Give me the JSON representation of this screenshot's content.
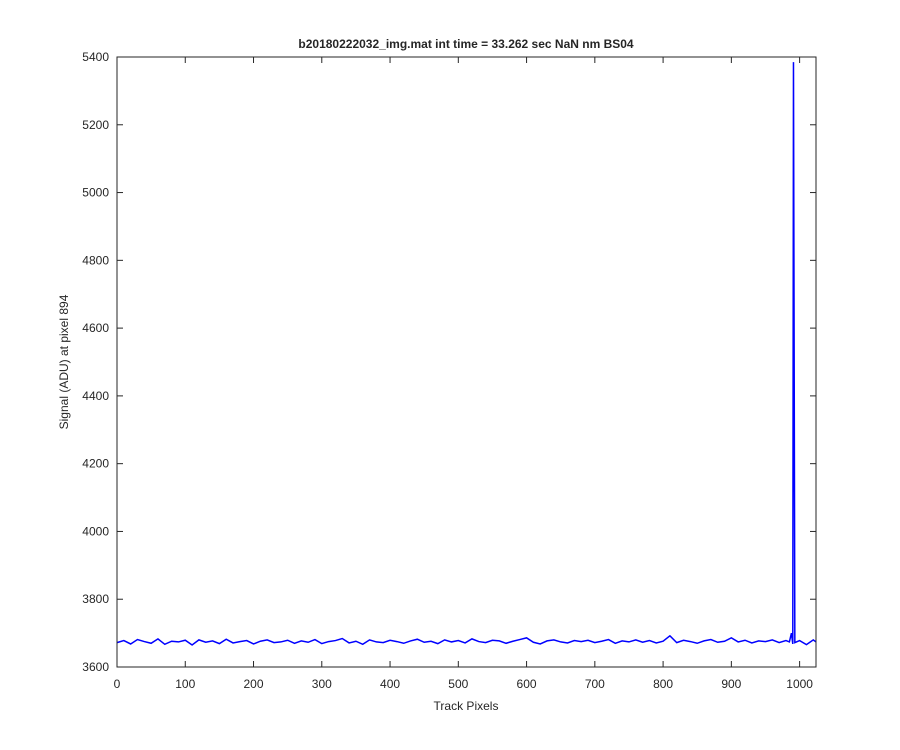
{
  "chart_data": {
    "type": "line",
    "title": "b20180222032_img.mat int time = 33.262 sec  NaN nm BS04",
    "x_label": "Track Pixels",
    "y_label": "Signal (ADU) at pixel 894",
    "xlim": [
      0,
      1024
    ],
    "xticks": [
      0,
      100,
      200,
      300,
      400,
      500,
      600,
      700,
      800,
      900,
      1000
    ],
    "ylim": [
      3600,
      5400
    ],
    "yticks": [
      3600,
      3800,
      4000,
      4200,
      4400,
      4600,
      4800,
      5000,
      5200,
      5400
    ],
    "grid": false,
    "x": [
      0,
      10,
      20,
      30,
      40,
      50,
      60,
      70,
      80,
      90,
      100,
      110,
      120,
      130,
      140,
      150,
      160,
      170,
      180,
      190,
      200,
      210,
      220,
      230,
      240,
      250,
      260,
      270,
      280,
      290,
      300,
      310,
      320,
      330,
      340,
      350,
      360,
      370,
      380,
      390,
      400,
      410,
      420,
      430,
      440,
      450,
      460,
      470,
      480,
      490,
      500,
      510,
      520,
      530,
      540,
      550,
      560,
      570,
      580,
      590,
      600,
      610,
      620,
      630,
      640,
      650,
      660,
      670,
      680,
      690,
      700,
      710,
      720,
      730,
      740,
      750,
      760,
      770,
      780,
      790,
      800,
      810,
      820,
      830,
      840,
      850,
      860,
      870,
      880,
      890,
      900,
      910,
      920,
      930,
      940,
      950,
      960,
      970,
      980,
      985,
      988,
      990,
      991,
      993,
      1000,
      1010,
      1020,
      1024
    ],
    "series": [
      {
        "name": "signal",
        "color": "#0000ff",
        "values": [
          3672,
          3678,
          3668,
          3681,
          3675,
          3670,
          3683,
          3667,
          3676,
          3674,
          3679,
          3665,
          3680,
          3673,
          3677,
          3669,
          3682,
          3671,
          3675,
          3678,
          3668,
          3676,
          3680,
          3672,
          3674,
          3679,
          3670,
          3677,
          3673,
          3681,
          3669,
          3675,
          3678,
          3684,
          3671,
          3676,
          3667,
          3680,
          3674,
          3672,
          3679,
          3675,
          3670,
          3677,
          3682,
          3673,
          3676,
          3669,
          3680,
          3674,
          3678,
          3671,
          3683,
          3675,
          3672,
          3679,
          3677,
          3670,
          3676,
          3681,
          3686,
          3673,
          3668,
          3677,
          3680,
          3674,
          3671,
          3678,
          3675,
          3679,
          3672,
          3676,
          3681,
          3670,
          3677,
          3674,
          3680,
          3673,
          3678,
          3671,
          3676,
          3692,
          3672,
          3679,
          3675,
          3670,
          3677,
          3681,
          3673,
          3676,
          3686,
          3674,
          3679,
          3671,
          3677,
          3675,
          3680,
          3672,
          3678,
          3674,
          3700,
          3668,
          5385,
          3672,
          3678,
          3666,
          3680,
          3674
        ]
      }
    ]
  }
}
